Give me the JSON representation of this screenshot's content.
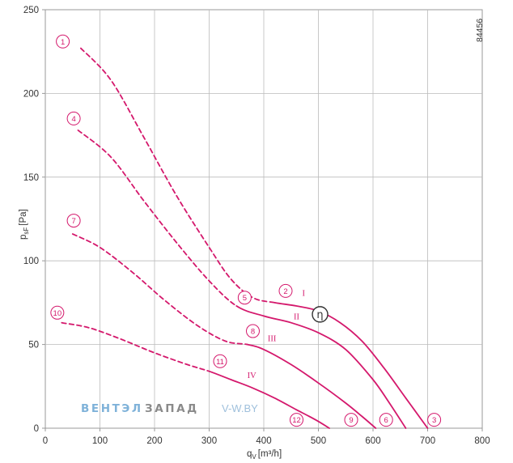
{
  "chart_data": {
    "type": "line",
    "xlabel": "q",
    "xlabel_sub": "V",
    "xlabel_unit": "[m³/h]",
    "ylabel": "p",
    "ylabel_sub": "sF",
    "ylabel_unit": "[Pa]",
    "xlim": [
      0,
      800
    ],
    "ylim": [
      0,
      250
    ],
    "xticks": [
      0,
      100,
      200,
      300,
      400,
      500,
      600,
      700,
      800
    ],
    "yticks": [
      0,
      50,
      100,
      150,
      200,
      250
    ],
    "grid": true,
    "code": "84456",
    "line_color": "#d4186c",
    "series": [
      {
        "name": "I",
        "x": [
          65,
          120,
          180,
          240,
          300,
          340,
          380,
          420,
          460,
          500,
          540,
          580,
          620,
          660,
          700
        ],
        "y": [
          227,
          208,
          174,
          139,
          108,
          89,
          78,
          75,
          73,
          70,
          63,
          52,
          36,
          18,
          0
        ],
        "style": [
          "dashed",
          "dashed",
          "dashed",
          "dashed",
          "dashed",
          "dashed",
          "dashed",
          "solid",
          "solid",
          "solid",
          "solid",
          "solid",
          "solid",
          "solid"
        ]
      },
      {
        "name": "II",
        "x": [
          60,
          120,
          180,
          240,
          300,
          350,
          400,
          450,
          500,
          550,
          600,
          630,
          660
        ],
        "y": [
          178,
          162,
          136,
          111,
          88,
          73,
          67,
          63,
          57,
          47,
          29,
          15,
          0
        ],
        "style": [
          "dashed",
          "dashed",
          "dashed",
          "dashed",
          "dashed",
          "solid",
          "solid",
          "solid",
          "solid",
          "solid",
          "solid",
          "solid"
        ]
      },
      {
        "name": "III",
        "x": [
          50,
          100,
          160,
          220,
          280,
          330,
          370,
          400,
          450,
          500,
          550,
          580,
          605
        ],
        "y": [
          116,
          108,
          93,
          76,
          61,
          52,
          50,
          47,
          38,
          27,
          15,
          7,
          0
        ],
        "style": [
          "dashed",
          "dashed",
          "dashed",
          "dashed",
          "dashed",
          "dashed",
          "solid",
          "solid",
          "solid",
          "solid",
          "solid",
          "solid"
        ]
      },
      {
        "name": "IV",
        "x": [
          30,
          80,
          140,
          200,
          260,
          300,
          340,
          380,
          420,
          460,
          495,
          520
        ],
        "y": [
          63,
          60,
          53,
          45,
          38,
          34,
          29,
          24,
          18,
          11,
          5,
          0
        ],
        "style": [
          "dashed",
          "dashed",
          "dashed",
          "dashed",
          "dashed",
          "solid",
          "solid",
          "solid",
          "solid",
          "solid",
          "solid"
        ]
      }
    ],
    "markers": [
      {
        "label": "1",
        "x": 32,
        "y": 231
      },
      {
        "label": "4",
        "x": 52,
        "y": 185
      },
      {
        "label": "7",
        "x": 52,
        "y": 124
      },
      {
        "label": "10",
        "x": 22,
        "y": 69
      },
      {
        "label": "2",
        "x": 440,
        "y": 82
      },
      {
        "label": "5",
        "x": 365,
        "y": 78
      },
      {
        "label": "8",
        "x": 380,
        "y": 58
      },
      {
        "label": "11",
        "x": 320,
        "y": 40
      },
      {
        "label": "3",
        "x": 712,
        "y": 5
      },
      {
        "label": "6",
        "x": 624,
        "y": 5
      },
      {
        "label": "9",
        "x": 560,
        "y": 5
      },
      {
        "label": "12",
        "x": 460,
        "y": 5
      }
    ],
    "roman_labels": [
      {
        "text": "I",
        "x": 473,
        "y": 81
      },
      {
        "text": "II",
        "x": 460,
        "y": 67
      },
      {
        "text": "III",
        "x": 415,
        "y": 54
      },
      {
        "text": "IV",
        "x": 378,
        "y": 32
      }
    ],
    "efficiency_marker": {
      "symbol": "η",
      "x": 503,
      "y": 68
    }
  },
  "watermark": {
    "part1": "ВЕНТЭЛ",
    "part2": "ЗАПАД",
    "part3": "V-W.BY"
  }
}
